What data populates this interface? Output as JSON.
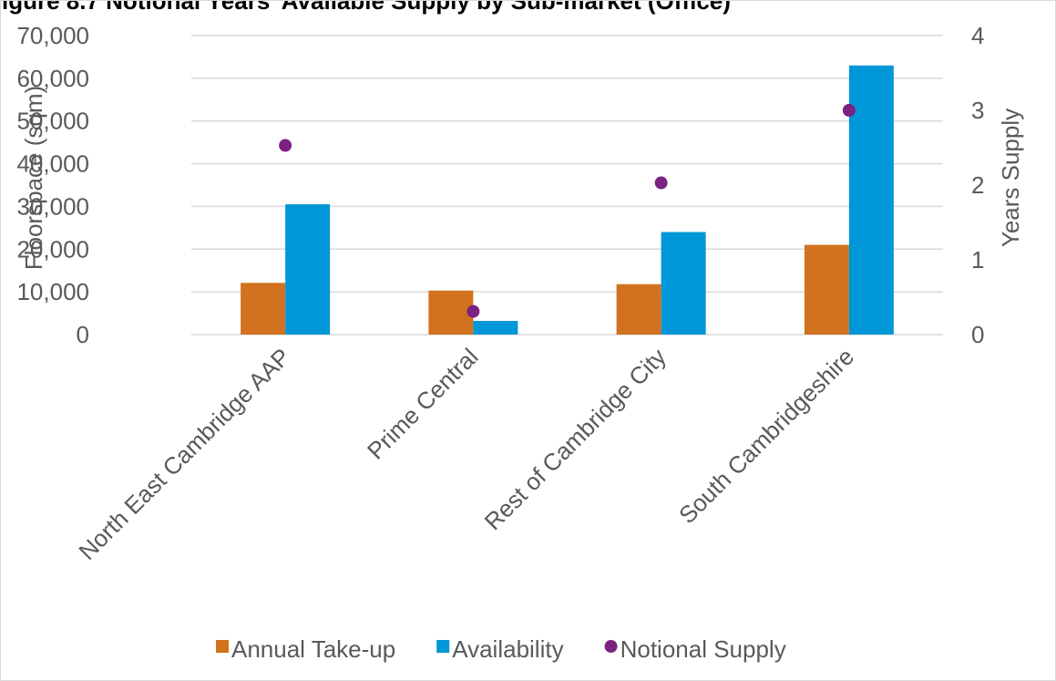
{
  "chart_data": {
    "type": "bar",
    "title": "igure 8.7   Notional Years' Available Supply by Sub-market (Office)",
    "categories": [
      "North East Cambridge AAP",
      "Prime Central",
      "Rest of Cambridge City",
      "South Cambridgeshire"
    ],
    "series": [
      {
        "name": "Annual Take-up",
        "axis": "left",
        "kind": "bar",
        "color": "#D2711E",
        "values": [
          12100,
          10300,
          11800,
          21000
        ]
      },
      {
        "name": "Availability",
        "axis": "left",
        "kind": "bar",
        "color": "#0097D8",
        "values": [
          30500,
          3200,
          24000,
          63000
        ]
      },
      {
        "name": "Notional Supply",
        "axis": "right",
        "kind": "point",
        "color": "#7B2182",
        "values": [
          2.53,
          0.31,
          2.03,
          3.0
        ]
      }
    ],
    "ylabel": "Floorspace (sqm)",
    "y2label": "Years Supply",
    "ylim": [
      0,
      70000
    ],
    "y2lim": [
      0,
      4
    ],
    "yticks": [
      "0",
      "10,000",
      "20,000",
      "30,000",
      "40,000",
      "50,000",
      "60,000",
      "70,000"
    ],
    "y2ticks": [
      "0",
      "1",
      "2",
      "3",
      "4"
    ],
    "grid": true,
    "legend_position": "bottom"
  }
}
